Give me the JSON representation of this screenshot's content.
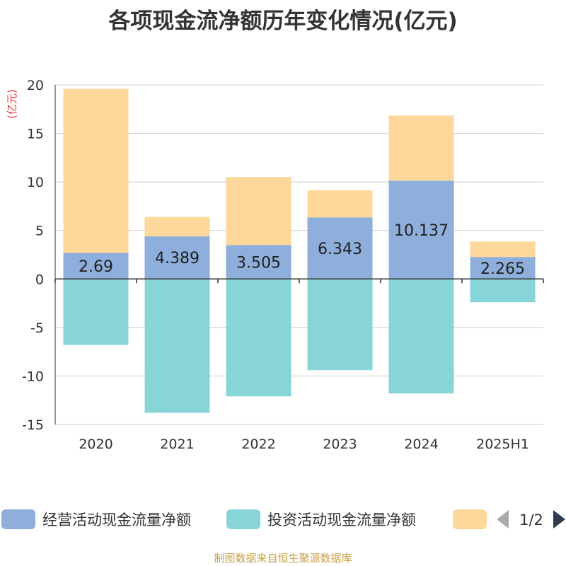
{
  "title": "各项现金流净额历年变化情况(亿元)",
  "source_note": "制图数据来自恒生聚源数据库",
  "colors": {
    "operating": "#8eaedb",
    "investing": "#88d5d8",
    "financing": "#fdd89a",
    "axis_unit": "#e53935",
    "grid": "#cccccc",
    "axis": "#333333",
    "pager_active": "#2c3e50",
    "pager_inactive": "#aaaaaa"
  },
  "legend": {
    "page_indicator": "1/2",
    "prev_icon": "triangle-left",
    "next_icon": "triangle-right"
  },
  "chart_data": {
    "type": "bar",
    "stacked": true,
    "title": "各项现金流净额历年变化情况(亿元)",
    "ylabel": "(亿元)",
    "ylim": [
      -15,
      20
    ],
    "yticks": [
      20,
      15,
      10,
      5,
      0,
      -5,
      -10,
      -15
    ],
    "grid": true,
    "legend_position": "bottom",
    "categories": [
      "2020",
      "2021",
      "2022",
      "2023",
      "2024",
      "2025H1"
    ],
    "series": [
      {
        "name": "经营活动现金流量净额",
        "color_key": "operating",
        "values": [
          2.69,
          4.389,
          3.505,
          6.343,
          10.137,
          2.265
        ],
        "labels": [
          "2.69",
          "4.389",
          "3.505",
          "6.343",
          "10.137",
          "2.265"
        ]
      },
      {
        "name": "投资活动现金流量净额",
        "color_key": "investing",
        "values": [
          -6.8,
          -13.8,
          -12.1,
          -9.4,
          -11.8,
          -2.4
        ]
      },
      {
        "name": "",
        "color_key": "financing",
        "values": [
          16.9,
          2.0,
          7.0,
          2.8,
          6.7,
          1.6
        ]
      }
    ]
  }
}
